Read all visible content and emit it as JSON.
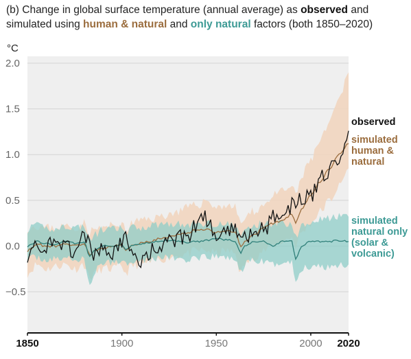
{
  "title": {
    "p1": "(b) Change in global surface temperature (annual average) as ",
    "observed": "observed",
    "p2": " and",
    "p3": "simulated using ",
    "human_natural": "human & natural",
    "p4": " and ",
    "only_natural": "only natural",
    "p5": " factors (both 1850–2020)"
  },
  "colors": {
    "observed": "#111111",
    "human_natural_line": "#9b6d3e",
    "human_natural_band": "#f1d5bf",
    "natural_line": "#2f7f79",
    "natural_band": "#8fcdc8",
    "plot_bg": "#efefef",
    "grid": "#d4d4d4"
  },
  "chart_data": {
    "type": "line",
    "ylabel": "°C",
    "xlim": [
      1850,
      2020
    ],
    "ylim": [
      -0.95,
      2.0
    ],
    "y_ticks": [
      -0.5,
      0.0,
      0.5,
      1.0,
      1.5,
      2.0
    ],
    "y_tick_labels": [
      "−0.5",
      "0.0",
      "0.5",
      "1.0",
      "1.5",
      "2.0"
    ],
    "x_ticks": [
      1850,
      1900,
      1950,
      2000,
      2020
    ],
    "x_tick_labels": [
      "1850",
      "1900",
      "1950",
      "2000",
      "2020"
    ],
    "grid": true,
    "series_labels": {
      "observed": "observed",
      "human_natural": [
        "simulated",
        "human &",
        "natural"
      ],
      "natural": [
        "simulated",
        "natural only",
        "(solar &",
        "volcanic)"
      ]
    },
    "x": [
      1850,
      1855,
      1860,
      1865,
      1870,
      1875,
      1880,
      1883,
      1885,
      1890,
      1895,
      1900,
      1902,
      1905,
      1910,
      1915,
      1920,
      1925,
      1930,
      1935,
      1940,
      1945,
      1950,
      1955,
      1960,
      1963,
      1965,
      1970,
      1975,
      1980,
      1985,
      1990,
      1992,
      1995,
      2000,
      2005,
      2010,
      2015,
      2020
    ],
    "observed": [
      -0.08,
      0.0,
      -0.02,
      0.02,
      0.01,
      -0.05,
      0.12,
      0.08,
      -0.12,
      -0.05,
      -0.08,
      0.0,
      0.08,
      -0.1,
      -0.18,
      -0.05,
      -0.02,
      0.03,
      0.1,
      0.08,
      0.25,
      0.3,
      0.13,
      0.12,
      0.18,
      0.15,
      0.1,
      0.16,
      0.18,
      0.3,
      0.33,
      0.45,
      0.42,
      0.55,
      0.52,
      0.72,
      0.85,
      1.0,
      1.26
    ],
    "human_natural": [
      -0.05,
      0.02,
      0.0,
      0.0,
      0.03,
      0.0,
      0.03,
      -0.1,
      -0.05,
      -0.02,
      -0.01,
      0.02,
      -0.05,
      0.0,
      0.03,
      0.05,
      0.08,
      0.1,
      0.12,
      0.15,
      0.18,
      0.18,
      0.15,
      0.17,
      0.15,
      0.0,
      0.05,
      0.12,
      0.2,
      0.25,
      0.28,
      0.35,
      0.25,
      0.4,
      0.55,
      0.7,
      0.85,
      1.0,
      1.12
    ],
    "human_natural_low": [
      -0.3,
      -0.2,
      -0.25,
      -0.22,
      -0.2,
      -0.25,
      -0.2,
      -0.35,
      -0.3,
      -0.25,
      -0.25,
      -0.22,
      -0.3,
      -0.22,
      -0.2,
      -0.18,
      -0.15,
      -0.12,
      -0.1,
      -0.08,
      -0.05,
      -0.05,
      -0.08,
      -0.05,
      -0.08,
      -0.3,
      -0.2,
      -0.12,
      -0.05,
      0.0,
      0.05,
      0.1,
      0.0,
      0.15,
      0.25,
      0.38,
      0.5,
      0.65,
      0.85
    ],
    "human_natural_high": [
      0.2,
      0.22,
      0.2,
      0.2,
      0.22,
      0.2,
      0.25,
      0.15,
      0.18,
      0.2,
      0.22,
      0.25,
      0.15,
      0.25,
      0.28,
      0.3,
      0.32,
      0.35,
      0.38,
      0.42,
      0.45,
      0.5,
      0.42,
      0.45,
      0.42,
      0.25,
      0.3,
      0.38,
      0.45,
      0.55,
      0.6,
      0.65,
      0.55,
      0.75,
      0.95,
      1.15,
      1.35,
      1.6,
      1.9
    ],
    "natural": [
      0.0,
      0.05,
      0.03,
      0.02,
      0.05,
      0.03,
      0.04,
      -0.12,
      -0.05,
      0.0,
      0.0,
      0.02,
      -0.03,
      0.0,
      0.02,
      0.04,
      0.05,
      0.06,
      0.05,
      0.04,
      0.05,
      0.06,
      0.08,
      0.07,
      0.05,
      -0.08,
      0.0,
      0.05,
      0.05,
      0.0,
      0.05,
      0.05,
      -0.15,
      0.0,
      0.05,
      0.05,
      0.05,
      0.06,
      0.05
    ],
    "natural_low": [
      -0.15,
      -0.12,
      -0.15,
      -0.15,
      -0.12,
      -0.15,
      -0.15,
      -0.45,
      -0.3,
      -0.18,
      -0.18,
      -0.15,
      -0.2,
      -0.15,
      -0.15,
      -0.15,
      -0.12,
      -0.12,
      -0.14,
      -0.15,
      -0.15,
      -0.12,
      -0.12,
      -0.12,
      -0.15,
      -0.3,
      -0.2,
      -0.15,
      -0.18,
      -0.2,
      -0.18,
      -0.18,
      -0.4,
      -0.25,
      -0.22,
      -0.22,
      -0.22,
      -0.2,
      -0.2
    ],
    "natural_high": [
      0.18,
      0.22,
      0.2,
      0.18,
      0.22,
      0.2,
      0.22,
      0.05,
      0.12,
      0.18,
      0.18,
      0.2,
      0.12,
      0.2,
      0.2,
      0.22,
      0.24,
      0.25,
      0.24,
      0.22,
      0.25,
      0.25,
      0.25,
      0.24,
      0.22,
      0.1,
      0.18,
      0.22,
      0.25,
      0.25,
      0.25,
      0.25,
      0.1,
      0.22,
      0.28,
      0.3,
      0.3,
      0.32,
      0.32
    ]
  }
}
